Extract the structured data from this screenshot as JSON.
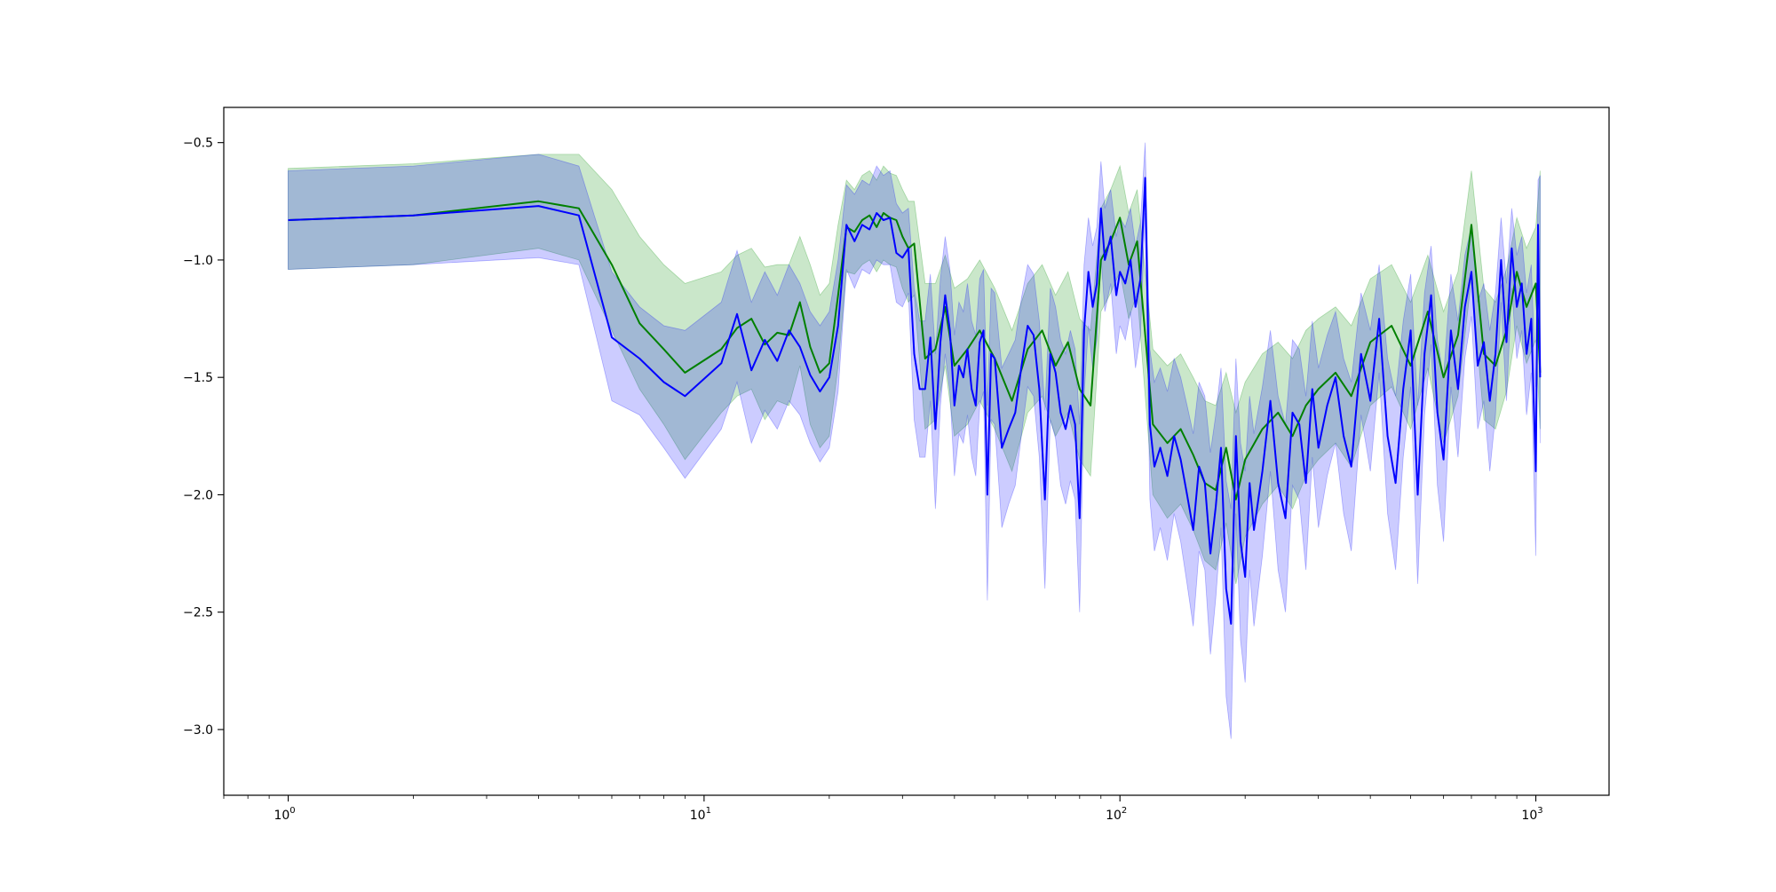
{
  "chart_data": {
    "type": "line",
    "title": "",
    "xlabel": "",
    "ylabel": "",
    "xscale": "log",
    "xlim": [
      0.7,
      1500
    ],
    "ylim": [
      -3.28,
      -0.35
    ],
    "grid": false,
    "legend": "none",
    "x_ticks": [
      {
        "value": 1,
        "base": "10",
        "exp": "0"
      },
      {
        "value": 10,
        "base": "10",
        "exp": "1"
      },
      {
        "value": 100,
        "base": "10",
        "exp": "2"
      },
      {
        "value": 1000,
        "base": "10",
        "exp": "3"
      }
    ],
    "y_ticks": [
      {
        "value": -0.5,
        "label": "−0.5"
      },
      {
        "value": -1.0,
        "label": "−1.0"
      },
      {
        "value": -1.5,
        "label": "−1.5"
      },
      {
        "value": -2.0,
        "label": "−2.0"
      },
      {
        "value": -2.5,
        "label": "−2.5"
      },
      {
        "value": -3.0,
        "label": "−3.0"
      }
    ],
    "series": [
      {
        "color": "#008000",
        "band_color": "#2ca02c",
        "band_opacity": 0.25,
        "x": [
          1,
          2,
          4,
          5,
          6,
          7,
          8,
          9,
          11,
          12,
          13,
          14,
          15,
          16,
          17,
          18,
          19,
          20,
          21,
          22,
          23,
          24,
          25,
          26,
          27,
          28,
          29,
          30,
          31,
          32,
          34,
          36,
          38,
          40,
          43,
          46,
          50,
          55,
          60,
          65,
          70,
          75,
          80,
          85,
          90,
          95,
          100,
          105,
          110,
          120,
          130,
          140,
          150,
          160,
          170,
          180,
          190,
          200,
          220,
          240,
          260,
          280,
          300,
          330,
          360,
          400,
          450,
          500,
          550,
          600,
          650,
          700,
          750,
          800,
          850,
          900,
          950,
          1000,
          1024
        ],
        "y": [
          -0.83,
          -0.81,
          -0.75,
          -0.78,
          -1.02,
          -1.27,
          -1.38,
          -1.48,
          -1.38,
          -1.29,
          -1.25,
          -1.36,
          -1.31,
          -1.32,
          -1.18,
          -1.37,
          -1.48,
          -1.44,
          -1.15,
          -0.86,
          -0.88,
          -0.83,
          -0.81,
          -0.86,
          -0.8,
          -0.82,
          -0.83,
          -0.9,
          -0.95,
          -0.93,
          -1.42,
          -1.38,
          -1.2,
          -1.45,
          -1.38,
          -1.3,
          -1.42,
          -1.6,
          -1.38,
          -1.3,
          -1.45,
          -1.35,
          -1.55,
          -1.62,
          -1.0,
          -0.92,
          -0.82,
          -1.02,
          -0.92,
          -1.7,
          -1.78,
          -1.72,
          -1.83,
          -1.95,
          -1.98,
          -1.8,
          -2.02,
          -1.85,
          -1.72,
          -1.65,
          -1.75,
          -1.62,
          -1.55,
          -1.48,
          -1.58,
          -1.35,
          -1.28,
          -1.45,
          -1.22,
          -1.5,
          -1.32,
          -0.85,
          -1.4,
          -1.45,
          -1.3,
          -1.05,
          -1.2,
          -1.1,
          -1.48
        ],
        "upper": [
          -0.61,
          -0.59,
          -0.55,
          -0.55,
          -0.7,
          -0.9,
          -1.02,
          -1.1,
          -1.05,
          -0.98,
          -0.95,
          -1.03,
          -1.02,
          -1.02,
          -0.9,
          -1.02,
          -1.15,
          -1.1,
          -0.85,
          -0.66,
          -0.7,
          -0.64,
          -0.62,
          -0.66,
          -0.6,
          -0.63,
          -0.64,
          -0.7,
          -0.75,
          -0.75,
          -1.1,
          -1.1,
          -0.98,
          -1.12,
          -1.08,
          -1.0,
          -1.12,
          -1.3,
          -1.1,
          -1.02,
          -1.15,
          -1.05,
          -1.25,
          -1.3,
          -0.78,
          -0.7,
          -0.6,
          -0.8,
          -0.7,
          -1.38,
          -1.45,
          -1.4,
          -1.5,
          -1.6,
          -1.62,
          -1.48,
          -1.65,
          -1.52,
          -1.4,
          -1.35,
          -1.42,
          -1.3,
          -1.25,
          -1.2,
          -1.28,
          -1.08,
          -1.02,
          -1.18,
          -0.98,
          -1.22,
          -1.05,
          -0.62,
          -1.12,
          -1.18,
          -1.04,
          -0.82,
          -0.95,
          -0.86,
          -0.62
        ],
        "lower": [
          -1.04,
          -1.02,
          -0.95,
          -1.0,
          -1.3,
          -1.55,
          -1.7,
          -1.85,
          -1.65,
          -1.58,
          -1.55,
          -1.68,
          -1.6,
          -1.62,
          -1.45,
          -1.7,
          -1.8,
          -1.75,
          -1.45,
          -1.05,
          -1.06,
          -1.02,
          -1.0,
          -1.05,
          -1.0,
          -1.02,
          -1.03,
          -1.12,
          -1.18,
          -1.15,
          -1.72,
          -1.68,
          -1.45,
          -1.75,
          -1.7,
          -1.6,
          -1.72,
          -1.9,
          -1.65,
          -1.58,
          -1.75,
          -1.65,
          -1.85,
          -1.92,
          -1.22,
          -1.14,
          -1.05,
          -1.25,
          -1.14,
          -2.0,
          -2.1,
          -2.04,
          -2.15,
          -2.28,
          -2.32,
          -2.12,
          -2.38,
          -2.18,
          -2.04,
          -1.96,
          -2.06,
          -1.92,
          -1.85,
          -1.78,
          -1.88,
          -1.62,
          -1.54,
          -1.72,
          -1.46,
          -1.78,
          -1.58,
          -1.08,
          -1.68,
          -1.72,
          -1.56,
          -1.28,
          -1.44,
          -1.34,
          -1.72
        ]
      },
      {
        "color": "#0000ff",
        "band_color": "#0000ff",
        "band_opacity": 0.2,
        "x": [
          1,
          2,
          4,
          5,
          6,
          7,
          8,
          9,
          11,
          12,
          13,
          14,
          15,
          16,
          17,
          18,
          19,
          20,
          21,
          22,
          23,
          24,
          25,
          26,
          27,
          28,
          29,
          30,
          31,
          32,
          33,
          34,
          35,
          36,
          37,
          38,
          39,
          40,
          41,
          42,
          43,
          44,
          45,
          46,
          47,
          48,
          49,
          50,
          52,
          54,
          56,
          58,
          60,
          62,
          64,
          66,
          68,
          70,
          72,
          74,
          76,
          78,
          80,
          82,
          84,
          86,
          88,
          90,
          92,
          95,
          98,
          100,
          103,
          106,
          109,
          112,
          115,
          118,
          121,
          125,
          130,
          135,
          140,
          145,
          150,
          155,
          160,
          165,
          170,
          175,
          180,
          185,
          190,
          195,
          200,
          205,
          210,
          220,
          230,
          240,
          250,
          260,
          270,
          280,
          290,
          300,
          315,
          330,
          345,
          360,
          380,
          400,
          420,
          440,
          460,
          480,
          500,
          520,
          540,
          560,
          580,
          600,
          625,
          650,
          675,
          700,
          725,
          750,
          775,
          800,
          825,
          850,
          875,
          900,
          925,
          950,
          975,
          1000,
          1012,
          1024
        ],
        "y": [
          -0.83,
          -0.81,
          -0.77,
          -0.81,
          -1.33,
          -1.42,
          -1.52,
          -1.58,
          -1.44,
          -1.23,
          -1.47,
          -1.34,
          -1.43,
          -1.3,
          -1.37,
          -1.49,
          -1.56,
          -1.5,
          -1.28,
          -0.85,
          -0.92,
          -0.85,
          -0.87,
          -0.8,
          -0.83,
          -0.82,
          -0.97,
          -0.99,
          -0.95,
          -1.4,
          -1.55,
          -1.55,
          -1.33,
          -1.72,
          -1.35,
          -1.15,
          -1.3,
          -1.62,
          -1.45,
          -1.5,
          -1.38,
          -1.55,
          -1.62,
          -1.35,
          -1.3,
          -2.0,
          -1.4,
          -1.42,
          -1.8,
          -1.72,
          -1.65,
          -1.45,
          -1.28,
          -1.32,
          -1.55,
          -2.02,
          -1.4,
          -1.48,
          -1.65,
          -1.72,
          -1.62,
          -1.7,
          -2.1,
          -1.3,
          -1.05,
          -1.2,
          -1.1,
          -0.78,
          -1.0,
          -0.9,
          -1.15,
          -1.05,
          -1.1,
          -1.0,
          -1.2,
          -1.08,
          -0.65,
          -1.7,
          -1.88,
          -1.8,
          -1.92,
          -1.75,
          -1.85,
          -2.0,
          -2.15,
          -1.88,
          -1.95,
          -2.25,
          -2.05,
          -1.8,
          -2.4,
          -2.55,
          -1.75,
          -2.2,
          -2.35,
          -1.95,
          -2.15,
          -1.9,
          -1.6,
          -1.95,
          -2.1,
          -1.65,
          -1.7,
          -1.95,
          -1.55,
          -1.8,
          -1.62,
          -1.5,
          -1.75,
          -1.88,
          -1.4,
          -1.6,
          -1.25,
          -1.75,
          -1.95,
          -1.55,
          -1.3,
          -2.0,
          -1.4,
          -1.15,
          -1.65,
          -1.85,
          -1.3,
          -1.55,
          -1.2,
          -1.05,
          -1.45,
          -1.35,
          -1.6,
          -1.4,
          -1.0,
          -1.35,
          -0.95,
          -1.2,
          -1.1,
          -1.4,
          -1.25,
          -1.9,
          -0.85,
          -1.5
        ],
        "upper": [
          -0.62,
          -0.6,
          -0.55,
          -0.6,
          -1.05,
          -1.2,
          -1.28,
          -1.3,
          -1.18,
          -0.96,
          -1.18,
          -1.05,
          -1.15,
          -1.02,
          -1.1,
          -1.22,
          -1.28,
          -1.22,
          -1.0,
          -0.68,
          -0.72,
          -0.66,
          -0.68,
          -0.6,
          -0.64,
          -0.62,
          -0.76,
          -0.8,
          -0.78,
          -1.12,
          -1.26,
          -1.26,
          -1.06,
          -1.4,
          -1.08,
          -0.9,
          -1.04,
          -1.32,
          -1.18,
          -1.22,
          -1.1,
          -1.26,
          -1.32,
          -1.08,
          -1.04,
          -1.62,
          -1.12,
          -1.14,
          -1.46,
          -1.4,
          -1.34,
          -1.16,
          -1.02,
          -1.06,
          -1.26,
          -1.64,
          -1.12,
          -1.2,
          -1.34,
          -1.4,
          -1.3,
          -1.38,
          -1.7,
          -1.02,
          -0.82,
          -0.94,
          -0.86,
          -0.58,
          -0.78,
          -0.7,
          -0.9,
          -0.82,
          -0.86,
          -0.78,
          -0.94,
          -0.84,
          -0.5,
          -1.38,
          -1.52,
          -1.46,
          -1.56,
          -1.42,
          -1.5,
          -1.62,
          -1.74,
          -1.52,
          -1.58,
          -1.82,
          -1.66,
          -1.46,
          -1.94,
          -2.06,
          -1.42,
          -1.78,
          -1.9,
          -1.58,
          -1.74,
          -1.54,
          -1.3,
          -1.58,
          -1.7,
          -1.34,
          -1.38,
          -1.58,
          -1.26,
          -1.46,
          -1.32,
          -1.22,
          -1.42,
          -1.52,
          -1.14,
          -1.3,
          -1.02,
          -1.42,
          -1.58,
          -1.26,
          -1.06,
          -1.62,
          -1.14,
          -0.94,
          -1.34,
          -1.5,
          -1.06,
          -1.26,
          -0.98,
          -0.86,
          -1.18,
          -1.1,
          -1.3,
          -1.14,
          -0.82,
          -1.1,
          -0.78,
          -0.98,
          -0.9,
          -1.14,
          -1.02,
          -1.54,
          -0.66,
          -0.64
        ],
        "lower": [
          -1.04,
          -1.02,
          -0.99,
          -1.02,
          -1.6,
          -1.66,
          -1.8,
          -1.93,
          -1.72,
          -1.52,
          -1.78,
          -1.64,
          -1.72,
          -1.6,
          -1.66,
          -1.78,
          -1.86,
          -1.8,
          -1.56,
          -1.04,
          -1.12,
          -1.04,
          -1.06,
          -1.0,
          -1.02,
          -1.02,
          -1.18,
          -1.2,
          -1.14,
          -1.68,
          -1.84,
          -1.84,
          -1.6,
          -2.06,
          -1.62,
          -1.4,
          -1.56,
          -1.92,
          -1.74,
          -1.78,
          -1.66,
          -1.84,
          -1.92,
          -1.62,
          -1.56,
          -2.45,
          -1.68,
          -1.7,
          -2.14,
          -2.04,
          -1.96,
          -1.74,
          -1.54,
          -1.58,
          -1.84,
          -2.4,
          -1.68,
          -1.76,
          -1.96,
          -2.04,
          -1.94,
          -2.02,
          -2.5,
          -1.58,
          -1.28,
          -1.46,
          -1.34,
          -0.98,
          -1.22,
          -1.1,
          -1.4,
          -1.28,
          -1.34,
          -1.22,
          -1.46,
          -1.32,
          -0.8,
          -2.02,
          -2.24,
          -2.14,
          -2.28,
          -2.08,
          -2.2,
          -2.38,
          -2.56,
          -2.24,
          -2.32,
          -2.68,
          -2.44,
          -2.14,
          -2.86,
          -3.04,
          -2.08,
          -2.62,
          -2.8,
          -2.32,
          -2.56,
          -2.26,
          -1.9,
          -2.32,
          -2.5,
          -1.96,
          -2.02,
          -2.32,
          -1.84,
          -2.14,
          -1.92,
          -1.78,
          -2.08,
          -2.24,
          -1.66,
          -1.9,
          -1.48,
          -2.08,
          -2.32,
          -1.84,
          -1.54,
          -2.38,
          -1.66,
          -1.36,
          -1.96,
          -2.2,
          -1.54,
          -1.84,
          -1.42,
          -1.24,
          -1.72,
          -1.6,
          -1.9,
          -1.66,
          -1.18,
          -1.6,
          -1.12,
          -1.42,
          -1.3,
          -1.66,
          -1.48,
          -2.26,
          -1.04,
          -1.78
        ]
      }
    ]
  }
}
